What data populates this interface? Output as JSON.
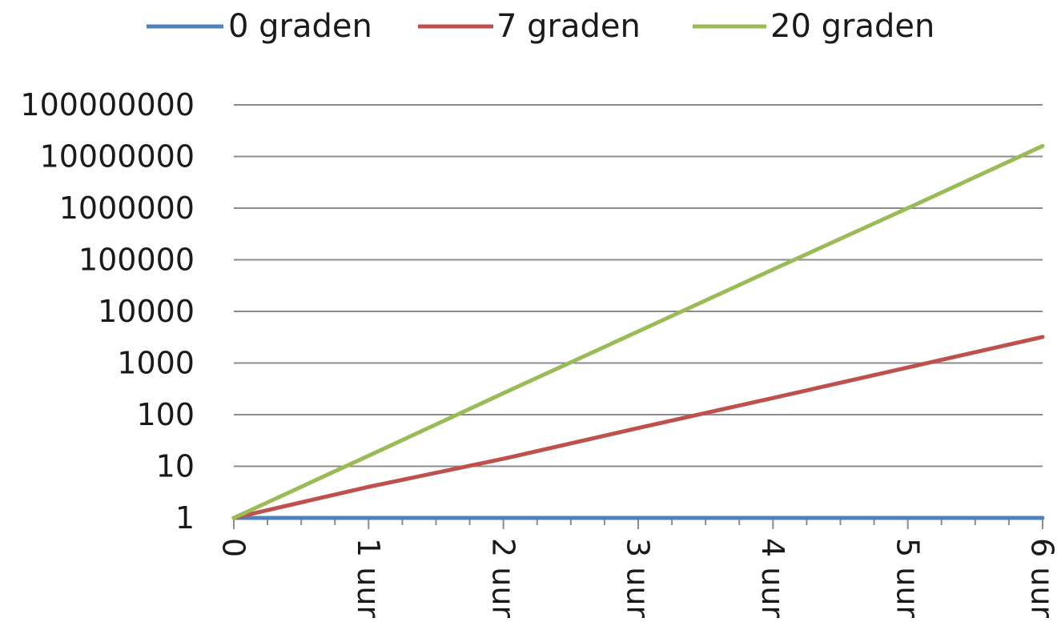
{
  "chart_data": {
    "type": "line",
    "y_scale": "log",
    "ylim": [
      1,
      100000000
    ],
    "xlim": [
      0,
      6
    ],
    "grid": true,
    "legend_position": "top",
    "x_tick_labels": [
      "0",
      "1 uur",
      "2 uur",
      "3 uur",
      "4 uur",
      "5 uur",
      "6 uur"
    ],
    "y_tick_labels": [
      "1",
      "10",
      "100",
      "1000",
      "10000",
      "100000",
      "1000000",
      "10000000",
      "100000000"
    ],
    "x": [
      0,
      1,
      2,
      3,
      4,
      5,
      6
    ],
    "series": [
      {
        "name": "0 graden",
        "color": "#4f81bd",
        "values": [
          1,
          1,
          1,
          1,
          1,
          1,
          1
        ]
      },
      {
        "name": "7 graden",
        "color": "#c0504d",
        "values": [
          1,
          4,
          14,
          55,
          210,
          820,
          3200
        ]
      },
      {
        "name": "20 graden",
        "color": "#9bbb59",
        "values": [
          1,
          16,
          260,
          4100,
          65000,
          1000000,
          16000000
        ]
      }
    ]
  }
}
